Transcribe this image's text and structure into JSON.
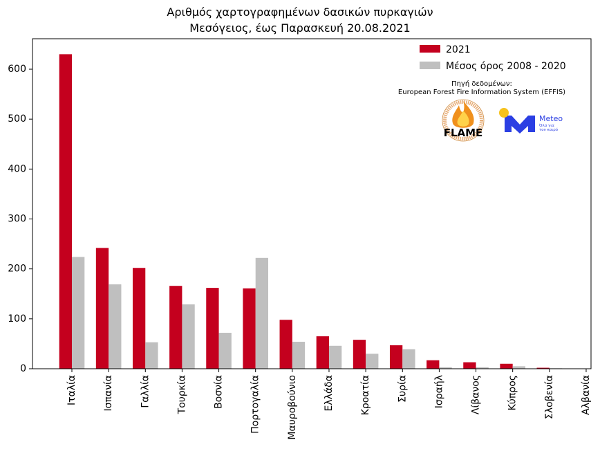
{
  "chart_data": {
    "type": "bar",
    "title": "Αριθμός χαρτογραφημένων δασικών πυρκαγιών",
    "subtitle": "Μεσόγειος, έως Παρασκευή 20.08.2021",
    "xlabel": "",
    "ylabel": "",
    "categories": [
      "Ιταλία",
      "Ισπανία",
      "Γαλλία",
      "Τουρκία",
      "Βοσνία",
      "Πορτογαλία",
      "Μαυροβούνιο",
      "Ελλάδα",
      "Κροατία",
      "Συρία",
      "Ισραήλ",
      "Λίβανος",
      "Κύπρος",
      "Σλοβενία",
      "Αλβανία"
    ],
    "series": [
      {
        "name": "2021",
        "color": "#c4001e",
        "values": [
          630,
          242,
          202,
          166,
          162,
          161,
          98,
          65,
          58,
          47,
          17,
          13,
          10,
          2,
          0
        ]
      },
      {
        "name": "Μέσος όρος 2008 - 2020",
        "color": "#bfbfbf",
        "values": [
          224,
          169,
          53,
          129,
          72,
          222,
          54,
          46,
          30,
          39,
          3,
          3,
          5,
          1,
          0
        ]
      }
    ],
    "ylim": [
      0,
      661
    ],
    "yticks": [
      0,
      100,
      200,
      300,
      400,
      500,
      600
    ],
    "grid": false,
    "legend": "top-right"
  },
  "source": {
    "label": "Πηγή δεδομένων:",
    "name": "European Forest Fire Information System (EFFIS)"
  },
  "logos": {
    "flame": {
      "text": "FLAME",
      "icon": "flame-seal-logo"
    },
    "meteo": {
      "text": "Meteo",
      "tagline": [
        "Όλα για",
        "τον καιρό"
      ],
      "icon": "meteo-m-logo",
      "color": "#2b3fe3",
      "sun_color": "#f6c21c"
    }
  }
}
